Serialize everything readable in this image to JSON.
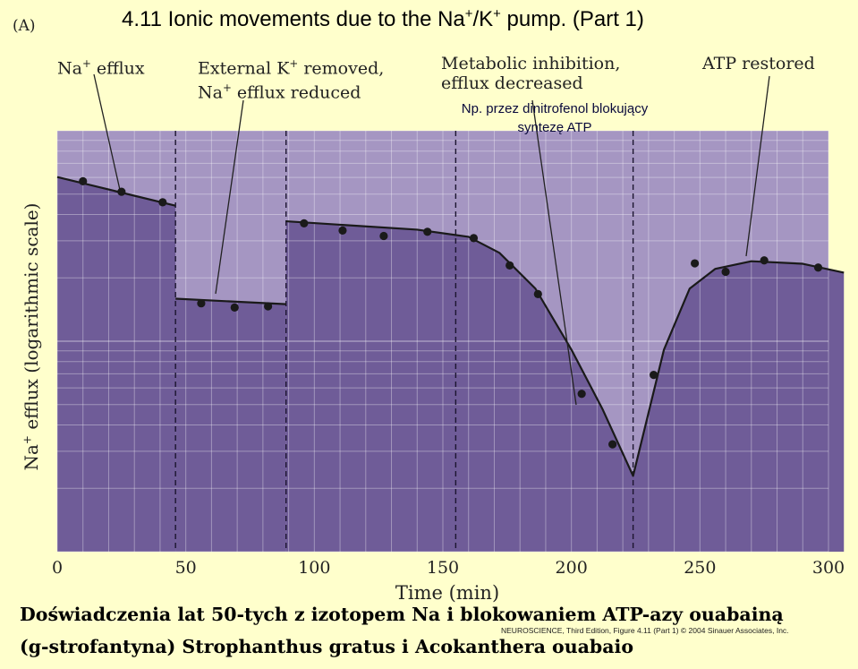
{
  "slide": {
    "title_prefix": "4.11  Ionic movements due to the Na",
    "title_sup1": "+",
    "title_mid": "/K",
    "title_sup2": "+",
    "title_suffix": " pump. (Part 1)",
    "panel_letter": "(A)"
  },
  "annotations": {
    "na_efflux": {
      "pre": "Na",
      "sup": "+",
      "post": " efflux"
    },
    "external_k": {
      "line1_pre": "External K",
      "line1_sup": "+",
      "line1_post": " removed,",
      "line2_pre": "Na",
      "line2_sup": "+",
      "line2_post": " efflux reduced"
    },
    "metabolic": {
      "line1": "Metabolic inhibition,",
      "line2": "efflux decreased"
    },
    "atp_restored": "ATP restored",
    "np_note_line1": "Np. przez dinitrofenol blokujący",
    "np_note_line2": "syntezę ATP"
  },
  "chart_data": {
    "type": "scatter",
    "xlabel": "Time (min)",
    "ylabel_pre": "Na",
    "ylabel_sup": "+",
    "ylabel_post": " efflux (logarithmic scale)",
    "xlim": [
      0,
      300
    ],
    "x_ticks": [
      0,
      50,
      100,
      150,
      200,
      250,
      300
    ],
    "x_tick_labels": [
      "0",
      "50",
      "100",
      "150",
      "200",
      "250",
      "300"
    ],
    "y_scale": "log",
    "y_values_note": "",
    "phase_boundaries": [
      46,
      89,
      155,
      224
    ],
    "grid": true,
    "points": [
      {
        "x": 10,
        "y": 0.88
      },
      {
        "x": 25,
        "y": 0.855
      },
      {
        "x": 41,
        "y": 0.83
      },
      {
        "x": 56,
        "y": 0.59
      },
      {
        "x": 69,
        "y": 0.58
      },
      {
        "x": 82,
        "y": 0.583
      },
      {
        "x": 96,
        "y": 0.78
      },
      {
        "x": 111,
        "y": 0.763
      },
      {
        "x": 127,
        "y": 0.75
      },
      {
        "x": 144,
        "y": 0.76
      },
      {
        "x": 162,
        "y": 0.745
      },
      {
        "x": 176,
        "y": 0.68
      },
      {
        "x": 187,
        "y": 0.612
      },
      {
        "x": 204,
        "y": 0.375
      },
      {
        "x": 216,
        "y": 0.255
      },
      {
        "x": 232,
        "y": 0.42
      },
      {
        "x": 248,
        "y": 0.685
      },
      {
        "x": 260,
        "y": 0.665
      },
      {
        "x": 275,
        "y": 0.692
      },
      {
        "x": 296,
        "y": 0.675
      }
    ],
    "fit_segments": [
      [
        [
          0,
          0.89
        ],
        [
          46,
          0.822
        ]
      ],
      [
        [
          46,
          0.601
        ],
        [
          89,
          0.588
        ]
      ],
      [
        [
          89,
          0.785
        ],
        [
          140,
          0.765
        ],
        [
          160,
          0.748
        ],
        [
          172,
          0.71
        ],
        [
          186,
          0.625
        ],
        [
          200,
          0.48
        ],
        [
          212,
          0.34
        ],
        [
          224,
          0.18
        ],
        [
          236,
          0.48
        ],
        [
          246,
          0.625
        ],
        [
          256,
          0.672
        ],
        [
          270,
          0.69
        ],
        [
          290,
          0.684
        ],
        [
          306,
          0.663
        ]
      ]
    ]
  },
  "footer": {
    "credit": "NEUROSCIENCE, Third Edition, Figure 4.11 (Part 1)  © 2004 Sinauer Associates, Inc.",
    "caption_line1": "Doświadczenia lat 50-tych z izotopem Na i blokowaniem ATP-azy ouabainą",
    "caption_line2": "(g-strofantyna)  Strophanthus gratus i Acokanthera ouabaio"
  },
  "colors": {
    "background": "#ffffcc",
    "plot_light": "#a596c2",
    "plot_dark": "#6f5c98",
    "data": "#1a1a1a"
  }
}
